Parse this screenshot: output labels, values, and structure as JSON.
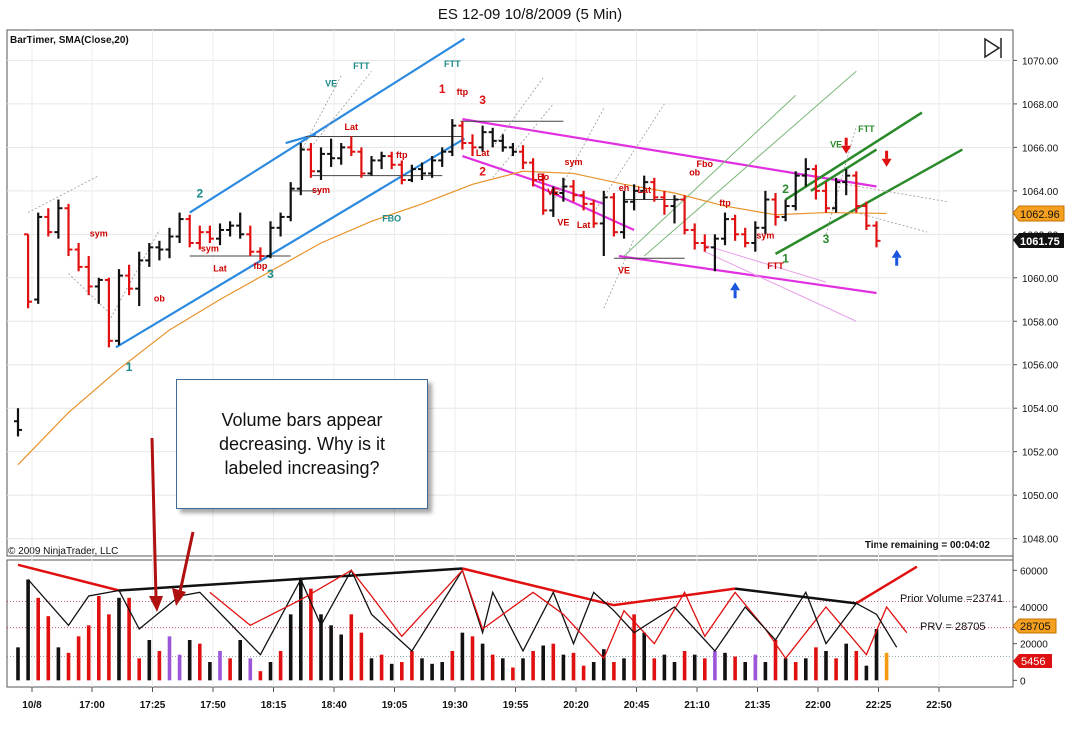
{
  "chart_data": {
    "type": "candlestick",
    "title": "ES 12-09  10/8/2009 (5 Min)",
    "indicator_label": "BarTimer, SMA(Close,20)",
    "copyright": "© 2009 NinjaTrader, LLC",
    "time_remaining": "Time remaining = 00:04:02",
    "price_axis": {
      "ticks": [
        "1070.00",
        "1068.00",
        "1066.00",
        "1064.00",
        "1062.00",
        "1060.00",
        "1058.00",
        "1056.00",
        "1054.00",
        "1052.00",
        "1050.00",
        "1048.00"
      ],
      "ylim": [
        1047.2,
        1071.4
      ],
      "last_price": "1061.75",
      "sma_value": "1062.96"
    },
    "time_axis": {
      "ticks": [
        "10/8",
        "17:00",
        "17:25",
        "17:50",
        "18:15",
        "18:40",
        "19:05",
        "19:30",
        "19:55",
        "20:20",
        "20:45",
        "21:10",
        "21:35",
        "22:00",
        "22:25",
        "22:50"
      ]
    },
    "bars": [
      {
        "o": 1053.4,
        "h": 1054.0,
        "l": 1052.7,
        "c": 1053.0,
        "col": "black"
      },
      {
        "o": 1062.0,
        "h": 1062.0,
        "l": 1058.6,
        "c": 1058.9,
        "col": "red"
      },
      {
        "o": 1059.0,
        "h": 1063.0,
        "l": 1058.8,
        "c": 1062.8,
        "col": "black"
      },
      {
        "o": 1062.8,
        "h": 1063.2,
        "l": 1061.9,
        "c": 1062.1,
        "col": "red"
      },
      {
        "o": 1062.1,
        "h": 1063.6,
        "l": 1061.8,
        "c": 1063.2,
        "col": "black"
      },
      {
        "o": 1063.2,
        "h": 1063.4,
        "l": 1061.0,
        "c": 1061.3,
        "col": "red"
      },
      {
        "o": 1061.3,
        "h": 1061.6,
        "l": 1060.3,
        "c": 1060.5,
        "col": "red"
      },
      {
        "o": 1060.5,
        "h": 1061.0,
        "l": 1059.2,
        "c": 1059.6,
        "col": "red"
      },
      {
        "o": 1059.6,
        "h": 1060.0,
        "l": 1058.8,
        "c": 1059.9,
        "col": "black"
      },
      {
        "o": 1059.9,
        "h": 1060.0,
        "l": 1056.8,
        "c": 1057.1,
        "col": "red"
      },
      {
        "o": 1057.1,
        "h": 1060.4,
        "l": 1056.9,
        "c": 1060.1,
        "col": "black"
      },
      {
        "o": 1060.1,
        "h": 1060.6,
        "l": 1059.2,
        "c": 1059.5,
        "col": "red"
      },
      {
        "o": 1059.5,
        "h": 1061.2,
        "l": 1058.7,
        "c": 1060.8,
        "col": "black"
      },
      {
        "o": 1060.8,
        "h": 1061.6,
        "l": 1060.5,
        "c": 1061.4,
        "col": "black"
      },
      {
        "o": 1061.4,
        "h": 1061.7,
        "l": 1060.8,
        "c": 1061.3,
        "col": "black"
      },
      {
        "o": 1061.3,
        "h": 1062.3,
        "l": 1060.9,
        "c": 1061.9,
        "col": "black"
      },
      {
        "o": 1061.9,
        "h": 1063.0,
        "l": 1061.6,
        "c": 1062.7,
        "col": "black"
      },
      {
        "o": 1062.7,
        "h": 1062.9,
        "l": 1061.4,
        "c": 1061.6,
        "col": "red"
      },
      {
        "o": 1061.6,
        "h": 1062.4,
        "l": 1061.3,
        "c": 1062.1,
        "col": "red"
      },
      {
        "o": 1062.1,
        "h": 1062.4,
        "l": 1061.6,
        "c": 1061.8,
        "col": "red"
      },
      {
        "o": 1061.8,
        "h": 1062.5,
        "l": 1061.5,
        "c": 1062.2,
        "col": "black"
      },
      {
        "o": 1062.2,
        "h": 1062.6,
        "l": 1061.9,
        "c": 1062.4,
        "col": "black"
      },
      {
        "o": 1062.4,
        "h": 1063.0,
        "l": 1061.8,
        "c": 1062.0,
        "col": "black"
      },
      {
        "o": 1062.0,
        "h": 1062.4,
        "l": 1061.0,
        "c": 1061.2,
        "col": "red"
      },
      {
        "o": 1061.2,
        "h": 1061.4,
        "l": 1060.8,
        "c": 1061.0,
        "col": "red"
      },
      {
        "o": 1061.0,
        "h": 1062.6,
        "l": 1060.9,
        "c": 1062.3,
        "col": "black"
      },
      {
        "o": 1062.3,
        "h": 1063.0,
        "l": 1061.9,
        "c": 1062.8,
        "col": "black"
      },
      {
        "o": 1062.8,
        "h": 1064.4,
        "l": 1062.6,
        "c": 1064.1,
        "col": "black"
      },
      {
        "o": 1064.1,
        "h": 1066.2,
        "l": 1063.8,
        "c": 1065.9,
        "col": "black"
      },
      {
        "o": 1065.9,
        "h": 1066.2,
        "l": 1064.6,
        "c": 1064.9,
        "col": "red"
      },
      {
        "o": 1064.9,
        "h": 1066.0,
        "l": 1064.5,
        "c": 1065.7,
        "col": "black"
      },
      {
        "o": 1065.7,
        "h": 1066.4,
        "l": 1065.1,
        "c": 1065.5,
        "col": "black"
      },
      {
        "o": 1065.5,
        "h": 1066.2,
        "l": 1065.2,
        "c": 1066.0,
        "col": "black"
      },
      {
        "o": 1066.0,
        "h": 1066.5,
        "l": 1065.6,
        "c": 1065.8,
        "col": "red"
      },
      {
        "o": 1065.8,
        "h": 1066.0,
        "l": 1064.6,
        "c": 1064.8,
        "col": "red"
      },
      {
        "o": 1064.8,
        "h": 1065.6,
        "l": 1064.7,
        "c": 1065.4,
        "col": "black"
      },
      {
        "o": 1065.4,
        "h": 1065.8,
        "l": 1065.0,
        "c": 1065.6,
        "col": "black"
      },
      {
        "o": 1065.6,
        "h": 1065.8,
        "l": 1065.0,
        "c": 1065.2,
        "col": "red"
      },
      {
        "o": 1065.2,
        "h": 1065.4,
        "l": 1064.3,
        "c": 1064.5,
        "col": "red"
      },
      {
        "o": 1064.5,
        "h": 1065.2,
        "l": 1064.4,
        "c": 1065.0,
        "col": "black"
      },
      {
        "o": 1065.0,
        "h": 1065.3,
        "l": 1064.5,
        "c": 1064.8,
        "col": "black"
      },
      {
        "o": 1064.8,
        "h": 1065.6,
        "l": 1064.6,
        "c": 1065.4,
        "col": "black"
      },
      {
        "o": 1065.4,
        "h": 1066.0,
        "l": 1065.1,
        "c": 1065.8,
        "col": "black"
      },
      {
        "o": 1065.8,
        "h": 1067.3,
        "l": 1065.6,
        "c": 1067.0,
        "col": "black"
      },
      {
        "o": 1067.0,
        "h": 1067.2,
        "l": 1065.9,
        "c": 1066.2,
        "col": "red"
      },
      {
        "o": 1066.2,
        "h": 1066.6,
        "l": 1065.6,
        "c": 1066.0,
        "col": "red"
      },
      {
        "o": 1066.0,
        "h": 1067.0,
        "l": 1065.8,
        "c": 1066.7,
        "col": "black"
      },
      {
        "o": 1066.7,
        "h": 1066.9,
        "l": 1066.0,
        "c": 1066.3,
        "col": "black"
      },
      {
        "o": 1066.3,
        "h": 1066.6,
        "l": 1065.8,
        "c": 1066.0,
        "col": "black"
      },
      {
        "o": 1066.0,
        "h": 1066.2,
        "l": 1065.6,
        "c": 1065.8,
        "col": "black"
      },
      {
        "o": 1065.8,
        "h": 1066.1,
        "l": 1065.0,
        "c": 1065.3,
        "col": "red"
      },
      {
        "o": 1065.3,
        "h": 1065.5,
        "l": 1064.2,
        "c": 1064.5,
        "col": "red"
      },
      {
        "o": 1064.5,
        "h": 1064.8,
        "l": 1062.9,
        "c": 1063.1,
        "col": "red"
      },
      {
        "o": 1063.1,
        "h": 1064.2,
        "l": 1062.8,
        "c": 1063.9,
        "col": "black"
      },
      {
        "o": 1063.9,
        "h": 1064.6,
        "l": 1063.5,
        "c": 1064.2,
        "col": "black"
      },
      {
        "o": 1064.2,
        "h": 1064.5,
        "l": 1063.5,
        "c": 1063.8,
        "col": "red"
      },
      {
        "o": 1063.8,
        "h": 1064.0,
        "l": 1063.1,
        "c": 1063.4,
        "col": "red"
      },
      {
        "o": 1063.4,
        "h": 1063.6,
        "l": 1062.3,
        "c": 1062.5,
        "col": "red"
      },
      {
        "o": 1062.5,
        "h": 1064.0,
        "l": 1061.0,
        "c": 1063.7,
        "col": "black"
      },
      {
        "o": 1063.7,
        "h": 1063.9,
        "l": 1061.9,
        "c": 1062.1,
        "col": "red"
      },
      {
        "o": 1062.1,
        "h": 1064.0,
        "l": 1061.8,
        "c": 1063.5,
        "col": "black"
      },
      {
        "o": 1063.5,
        "h": 1064.3,
        "l": 1063.1,
        "c": 1064.0,
        "col": "black"
      },
      {
        "o": 1064.0,
        "h": 1064.7,
        "l": 1063.6,
        "c": 1064.4,
        "col": "black"
      },
      {
        "o": 1064.4,
        "h": 1064.6,
        "l": 1063.5,
        "c": 1063.7,
        "col": "red"
      },
      {
        "o": 1063.7,
        "h": 1064.0,
        "l": 1062.9,
        "c": 1063.3,
        "col": "red"
      },
      {
        "o": 1063.3,
        "h": 1063.8,
        "l": 1062.5,
        "c": 1063.6,
        "col": "black"
      },
      {
        "o": 1063.6,
        "h": 1063.8,
        "l": 1062.0,
        "c": 1062.2,
        "col": "red"
      },
      {
        "o": 1062.2,
        "h": 1062.5,
        "l": 1061.3,
        "c": 1061.6,
        "col": "red"
      },
      {
        "o": 1061.6,
        "h": 1062.0,
        "l": 1061.2,
        "c": 1061.4,
        "col": "red"
      },
      {
        "o": 1061.4,
        "h": 1062.0,
        "l": 1060.3,
        "c": 1061.8,
        "col": "black"
      },
      {
        "o": 1061.8,
        "h": 1063.0,
        "l": 1061.5,
        "c": 1062.7,
        "col": "black"
      },
      {
        "o": 1062.7,
        "h": 1062.9,
        "l": 1061.7,
        "c": 1062.0,
        "col": "red"
      },
      {
        "o": 1062.0,
        "h": 1062.3,
        "l": 1061.4,
        "c": 1061.6,
        "col": "red"
      },
      {
        "o": 1061.6,
        "h": 1062.6,
        "l": 1061.2,
        "c": 1062.3,
        "col": "black"
      },
      {
        "o": 1062.3,
        "h": 1064.0,
        "l": 1062.0,
        "c": 1063.6,
        "col": "black"
      },
      {
        "o": 1063.6,
        "h": 1063.9,
        "l": 1062.4,
        "c": 1062.8,
        "col": "red"
      },
      {
        "o": 1062.8,
        "h": 1063.6,
        "l": 1062.6,
        "c": 1063.3,
        "col": "black"
      },
      {
        "o": 1063.3,
        "h": 1064.9,
        "l": 1063.1,
        "c": 1064.7,
        "col": "black"
      },
      {
        "o": 1064.7,
        "h": 1065.5,
        "l": 1064.2,
        "c": 1065.0,
        "col": "black"
      },
      {
        "o": 1065.0,
        "h": 1065.2,
        "l": 1063.6,
        "c": 1064.0,
        "col": "red"
      },
      {
        "o": 1064.0,
        "h": 1064.4,
        "l": 1063.0,
        "c": 1063.2,
        "col": "red"
      },
      {
        "o": 1063.2,
        "h": 1064.6,
        "l": 1063.0,
        "c": 1064.4,
        "col": "black"
      },
      {
        "o": 1064.4,
        "h": 1065.0,
        "l": 1063.8,
        "c": 1064.7,
        "col": "black"
      },
      {
        "o": 1064.7,
        "h": 1064.9,
        "l": 1063.0,
        "c": 1063.3,
        "col": "red"
      },
      {
        "o": 1063.3,
        "h": 1063.5,
        "l": 1062.2,
        "c": 1062.4,
        "col": "red"
      },
      {
        "o": 1062.4,
        "h": 1062.6,
        "l": 1061.4,
        "c": 1061.7,
        "col": "red"
      }
    ],
    "sma": [
      [
        0,
        1051.4
      ],
      [
        5,
        1053.8
      ],
      [
        10,
        1055.8
      ],
      [
        15,
        1057.6
      ],
      [
        20,
        1059.0
      ],
      [
        25,
        1060.3
      ],
      [
        30,
        1061.6
      ],
      [
        35,
        1062.6
      ],
      [
        40,
        1063.4
      ],
      [
        45,
        1064.3
      ],
      [
        50,
        1064.9
      ],
      [
        55,
        1064.8
      ],
      [
        60,
        1064.3
      ],
      [
        65,
        1063.9
      ],
      [
        70,
        1063.3
      ],
      [
        75,
        1062.9
      ],
      [
        80,
        1063.0
      ],
      [
        86,
        1062.96
      ]
    ],
    "annotations": [
      {
        "text": "VE",
        "x": 31,
        "y": 1068.8,
        "color": "#1a8a8a"
      },
      {
        "text": "FTT",
        "x": 34,
        "y": 1069.6,
        "color": "#1a8a8a"
      },
      {
        "text": "FTT",
        "x": 43,
        "y": 1069.7,
        "color": "#1a8a8a"
      },
      {
        "text": "1",
        "x": 42,
        "y": 1068.5,
        "color": "#dd1111",
        "size": 12
      },
      {
        "text": "ftp",
        "x": 44,
        "y": 1068.4,
        "color": "#cc0000"
      },
      {
        "text": "3",
        "x": 46,
        "y": 1068.0,
        "color": "#dd1111",
        "size": 12
      },
      {
        "text": "Lat",
        "x": 33,
        "y": 1066.8,
        "color": "#cc0000"
      },
      {
        "text": "sym",
        "x": 30,
        "y": 1063.9,
        "color": "#cc0000"
      },
      {
        "text": "ftp",
        "x": 38,
        "y": 1065.5,
        "color": "#cc0000"
      },
      {
        "text": "FBO",
        "x": 37,
        "y": 1062.6,
        "color": "#1a8a8a"
      },
      {
        "text": "Lat",
        "x": 46,
        "y": 1065.6,
        "color": "#cc0000"
      },
      {
        "text": "2",
        "x": 46,
        "y": 1064.7,
        "color": "#dd1111",
        "size": 12
      },
      {
        "text": "2",
        "x": 18,
        "y": 1063.7,
        "color": "#1a8a8a",
        "size": 12
      },
      {
        "text": "sym",
        "x": 19,
        "y": 1061.2,
        "color": "#cc0000"
      },
      {
        "text": "Lat",
        "x": 20,
        "y": 1060.3,
        "color": "#cc0000"
      },
      {
        "text": "fbp",
        "x": 24,
        "y": 1060.4,
        "color": "#cc0000"
      },
      {
        "text": "3",
        "x": 25,
        "y": 1060.0,
        "color": "#1a8a8a",
        "size": 12
      },
      {
        "text": "sym",
        "x": 8,
        "y": 1061.9,
        "color": "#cc0000"
      },
      {
        "text": "ob",
        "x": 14,
        "y": 1058.9,
        "color": "#cc0000"
      },
      {
        "text": "1",
        "x": 11,
        "y": 1055.7,
        "color": "#1a8a8a",
        "size": 12
      },
      {
        "text": "Bo",
        "x": 52,
        "y": 1064.5,
        "color": "#cc0000"
      },
      {
        "text": "sym",
        "x": 55,
        "y": 1065.2,
        "color": "#cc0000"
      },
      {
        "text": "VE",
        "x": 53,
        "y": 1063.8,
        "color": "#cc0000"
      },
      {
        "text": "VE",
        "x": 54,
        "y": 1062.4,
        "color": "#cc0000"
      },
      {
        "text": "Lat",
        "x": 56,
        "y": 1062.3,
        "color": "#cc0000"
      },
      {
        "text": "eh",
        "x": 60,
        "y": 1064.0,
        "color": "#cc0000"
      },
      {
        "text": "Lat",
        "x": 62,
        "y": 1063.9,
        "color": "#cc0000"
      },
      {
        "text": "VE",
        "x": 60,
        "y": 1060.2,
        "color": "#cc0000"
      },
      {
        "text": "ob",
        "x": 67,
        "y": 1064.7,
        "color": "#cc0000"
      },
      {
        "text": "Fbo",
        "x": 68,
        "y": 1065.1,
        "color": "#cc0000"
      },
      {
        "text": "ftp",
        "x": 70,
        "y": 1063.3,
        "color": "#cc0000"
      },
      {
        "text": "sym",
        "x": 74,
        "y": 1061.8,
        "color": "#cc0000"
      },
      {
        "text": "FTT",
        "x": 75,
        "y": 1060.4,
        "color": "#cc0000"
      },
      {
        "text": "2",
        "x": 76,
        "y": 1063.9,
        "color": "#2a8a2a",
        "size": 12
      },
      {
        "text": "1",
        "x": 76,
        "y": 1060.7,
        "color": "#2a8a2a",
        "size": 12
      },
      {
        "text": "3",
        "x": 80,
        "y": 1061.6,
        "color": "#2a8a2a",
        "size": 12
      },
      {
        "text": "VE",
        "x": 81,
        "y": 1066.0,
        "color": "#2a8a2a"
      },
      {
        "text": "FTT",
        "x": 84,
        "y": 1066.7,
        "color": "#2a8a2a"
      }
    ],
    "volume": {
      "ticks": [
        "60000",
        "40000",
        "20000",
        "0"
      ],
      "ylim": [
        -2000,
        64000
      ],
      "values": [
        18000,
        55000,
        45000,
        35000,
        18000,
        15000,
        24000,
        30000,
        46000,
        36000,
        45000,
        45000,
        12000,
        22000,
        16000,
        24000,
        14000,
        22000,
        20000,
        10000,
        16000,
        12000,
        22000,
        12000,
        5000,
        10000,
        16000,
        36000,
        56000,
        50000,
        36000,
        30000,
        25000,
        36000,
        26000,
        12000,
        14000,
        9000,
        10000,
        16000,
        12000,
        9000,
        10000,
        16000,
        26000,
        24000,
        20000,
        14000,
        12000,
        7000,
        12000,
        16000,
        19000,
        20000,
        14000,
        15000,
        8000,
        10000,
        17000,
        10000,
        12000,
        36000,
        26000,
        12000,
        14000,
        10000,
        16000,
        14000,
        12000,
        16000,
        15000,
        13000,
        10000,
        14000,
        10000,
        22000,
        12000,
        10000,
        12000,
        18000,
        16000,
        12000,
        20000,
        16000,
        8000,
        28000,
        15000
      ],
      "colors": [
        "black",
        "black",
        "red",
        "red",
        "black",
        "red",
        "red",
        "red",
        "red",
        "red",
        "black",
        "red",
        "red",
        "black",
        "red",
        "purple",
        "purple",
        "black",
        "red",
        "black",
        "purple",
        "red",
        "black",
        "purple",
        "red",
        "black",
        "red",
        "black",
        "black",
        "red",
        "black",
        "black",
        "black",
        "red",
        "red",
        "black",
        "red",
        "black",
        "red",
        "red",
        "black",
        "black",
        "black",
        "red",
        "black",
        "red",
        "black",
        "red",
        "black",
        "red",
        "black",
        "red",
        "black",
        "red",
        "black",
        "red",
        "red",
        "black",
        "black",
        "red",
        "black",
        "red",
        "black",
        "red",
        "black",
        "black",
        "red",
        "black",
        "red",
        "purple",
        "black",
        "red",
        "black",
        "purple",
        "black",
        "red",
        "black",
        "red",
        "black",
        "red",
        "black",
        "red",
        "black",
        "red",
        "black",
        "black",
        "orange"
      ],
      "prior_volume_label": "Prior Volume =23741",
      "prv_label": "PRV = 28705",
      "prv_tag": "28705",
      "current_tag": "5456"
    },
    "callout": "Volume bars appear decreasing.  Why is it labeled increasing?"
  }
}
